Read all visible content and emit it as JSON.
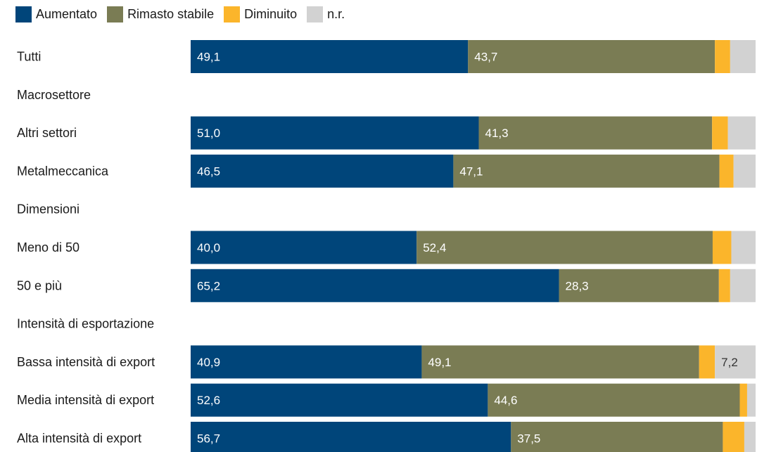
{
  "chart_data": {
    "type": "bar",
    "orientation": "horizontal",
    "stacked": true,
    "xlim": [
      0,
      100
    ],
    "legend": [
      {
        "name": "Aumentato",
        "color": "#00457a"
      },
      {
        "name": "Rimasto stabile",
        "color": "#7a7c54"
      },
      {
        "name": "Diminuito",
        "color": "#fbb52b"
      },
      {
        "name": "n.r.",
        "color": "#d2d2d2"
      }
    ],
    "rows": [
      {
        "label": "Tutti",
        "type": "bar",
        "values": [
          49.1,
          43.7,
          2.7,
          4.5
        ],
        "labels": [
          "49,1",
          "43,7",
          "",
          ""
        ]
      },
      {
        "label": "Macrosettore",
        "type": "header"
      },
      {
        "label": "Altri settori",
        "type": "bar",
        "values": [
          51.0,
          41.3,
          2.8,
          4.9
        ],
        "labels": [
          "51,0",
          "41,3",
          "",
          ""
        ]
      },
      {
        "label": "Metalmeccanica",
        "type": "bar",
        "values": [
          46.5,
          47.1,
          2.5,
          3.9
        ],
        "labels": [
          "46,5",
          "47,1",
          "",
          ""
        ]
      },
      {
        "label": "Dimensioni",
        "type": "header"
      },
      {
        "label": "Meno di 50",
        "type": "bar",
        "values": [
          40.0,
          52.4,
          3.3,
          4.3
        ],
        "labels": [
          "40,0",
          "52,4",
          "",
          ""
        ]
      },
      {
        "label": "50 e più",
        "type": "bar",
        "values": [
          65.2,
          28.3,
          2.0,
          4.5
        ],
        "labels": [
          "65,2",
          "28,3",
          "",
          ""
        ]
      },
      {
        "label": "Intensità di esportazione",
        "type": "header"
      },
      {
        "label": "Bassa intensità di export",
        "type": "bar",
        "values": [
          40.9,
          49.1,
          2.8,
          7.2
        ],
        "labels": [
          "40,9",
          "49,1",
          "",
          "7,2"
        ]
      },
      {
        "label": "Media intensità di export",
        "type": "bar",
        "values": [
          52.6,
          44.6,
          1.3,
          1.5
        ],
        "labels": [
          "52,6",
          "44,6",
          "",
          ""
        ]
      },
      {
        "label": "Alta intensità di export",
        "type": "bar",
        "values": [
          56.7,
          37.5,
          3.8,
          2.0
        ],
        "labels": [
          "56,7",
          "37,5",
          "",
          ""
        ]
      }
    ]
  }
}
